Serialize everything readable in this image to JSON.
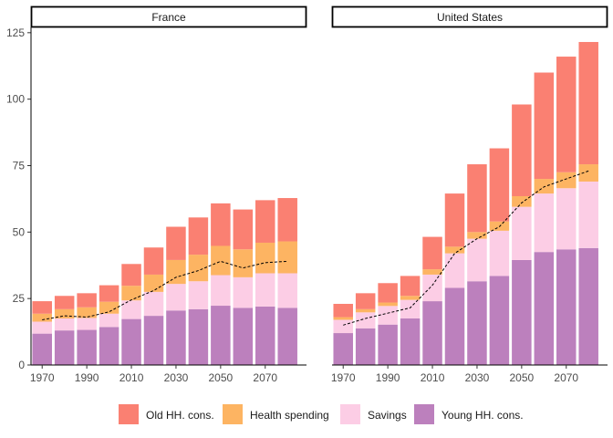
{
  "chart_data": {
    "type": "bar",
    "stacked": true,
    "xlabel": "",
    "ylabel": "",
    "ylim": [
      0,
      127
    ],
    "yticks": [
      0,
      25,
      50,
      75,
      100,
      125
    ],
    "xticks": [
      "1970",
      "1990",
      "2010",
      "2030",
      "2050",
      "2070"
    ],
    "categories": [
      1970,
      1980,
      1990,
      2000,
      2010,
      2020,
      2030,
      2040,
      2050,
      2060,
      2070,
      2080
    ],
    "legend_position": "bottom",
    "grid": false,
    "legend": [
      {
        "name": "Old HH. cons.",
        "color": "#FA8072"
      },
      {
        "name": "Health spending",
        "color": "#FDB462"
      },
      {
        "name": "Savings",
        "color": "#FCCDE5"
      },
      {
        "name": "Young HH. cons.",
        "color": "#BC80BD"
      }
    ],
    "panels": [
      {
        "title": "France",
        "series": [
          {
            "name": "Young HH. cons.",
            "values": [
              11.8,
              13.0,
              13.2,
              14.3,
              17.3,
              18.5,
              20.5,
              21.0,
              22.3,
              21.5,
              22.0,
              21.5
            ]
          },
          {
            "name": "Savings",
            "values": [
              4.5,
              4.5,
              4.5,
              5.0,
              7.0,
              9.0,
              10.0,
              10.5,
              11.5,
              11.5,
              12.5,
              13.0
            ]
          },
          {
            "name": "Health spending",
            "values": [
              3.0,
              3.5,
              4.0,
              4.5,
              5.5,
              6.5,
              9.0,
              10.0,
              11.0,
              10.5,
              11.5,
              12.0
            ]
          },
          {
            "name": "Old HH. cons.",
            "values": [
              4.7,
              5.0,
              5.3,
              6.2,
              8.2,
              10.2,
              12.5,
              14.0,
              16.0,
              15.0,
              16.0,
              16.3
            ]
          }
        ],
        "dashed_line": [
          17.0,
          18.5,
          18.0,
          20.0,
          24.5,
          28.0,
          33.0,
          35.5,
          39.0,
          36.5,
          38.5,
          39.0
        ]
      },
      {
        "title": "United States",
        "series": [
          {
            "name": "Young HH. cons.",
            "values": [
              12.0,
              13.8,
              15.2,
              17.5,
              24.0,
              29.0,
              31.5,
              33.5,
              39.5,
              42.5,
              43.5,
              44.0
            ]
          },
          {
            "name": "Savings",
            "values": [
              5.0,
              6.0,
              7.0,
              7.0,
              10.0,
              13.0,
              16.0,
              17.0,
              20.0,
              22.0,
              23.0,
              25.0
            ]
          },
          {
            "name": "Health spending",
            "values": [
              1.0,
              1.2,
              1.3,
              1.5,
              2.0,
              2.5,
              2.5,
              3.5,
              4.0,
              5.5,
              6.0,
              6.5
            ]
          },
          {
            "name": "Old HH. cons.",
            "values": [
              5.0,
              6.0,
              7.3,
              7.5,
              12.2,
              20.0,
              25.5,
              27.5,
              34.5,
              40.0,
              43.5,
              46.0
            ]
          }
        ],
        "dashed_line": [
          15.0,
          17.5,
          19.5,
          21.5,
          30.0,
          42.0,
          47.5,
          52.0,
          61.0,
          67.0,
          70.0,
          73.0
        ]
      }
    ]
  }
}
